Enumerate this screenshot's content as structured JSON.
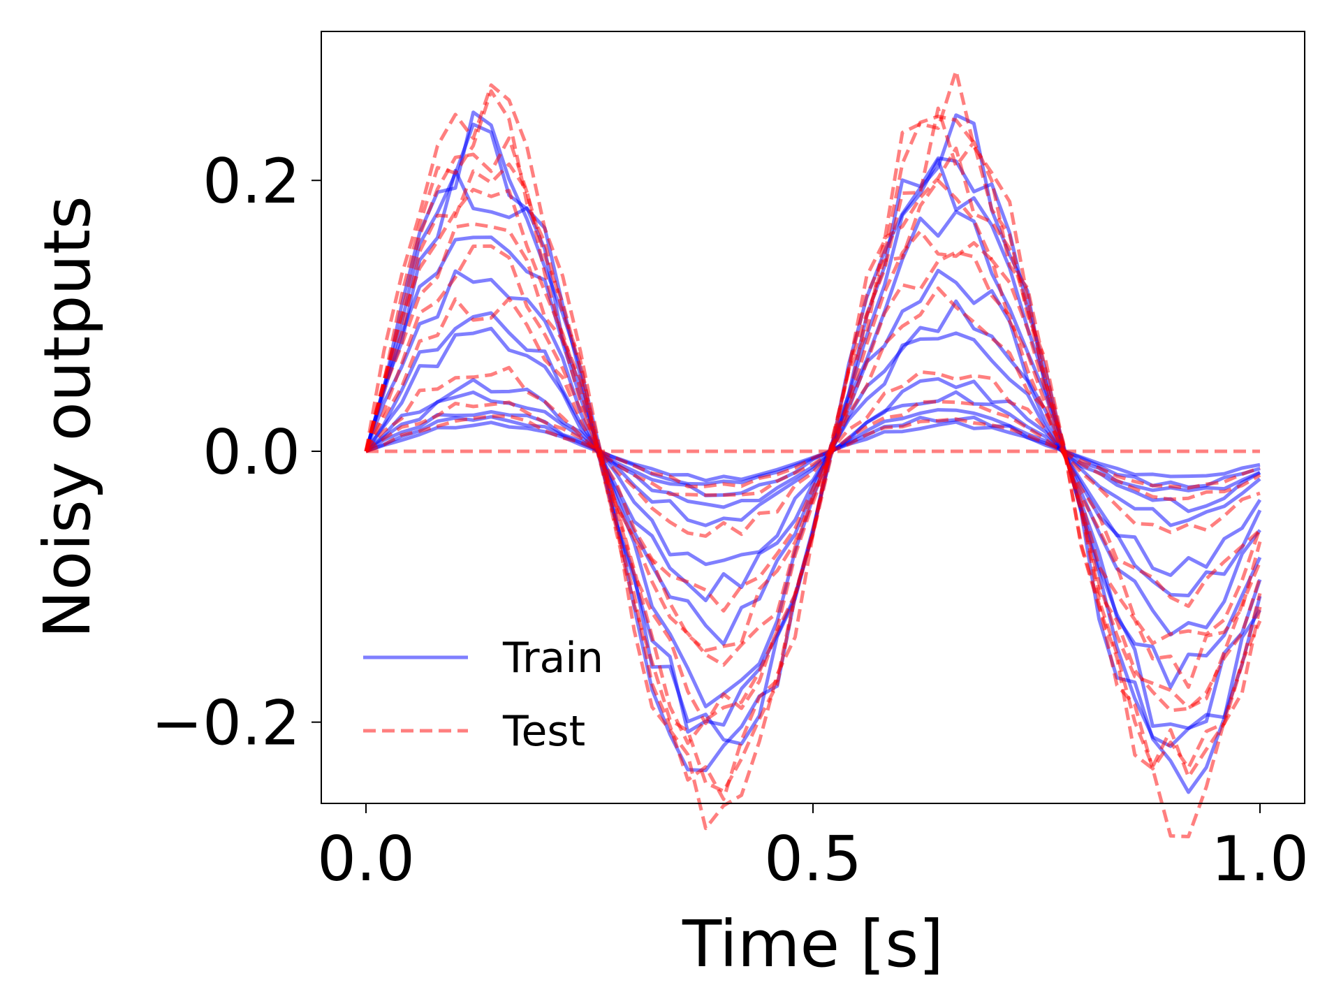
{
  "chart_data": {
    "type": "line",
    "title": "",
    "xlabel": "Time [s]",
    "ylabel": "Noisy outputs",
    "xlim": [
      -0.05,
      1.05
    ],
    "ylim": [
      -0.26,
      0.31
    ],
    "x_ticks": [
      0.0,
      0.5,
      1.0
    ],
    "x_tick_labels": [
      "0.0",
      "0.5",
      "1.0"
    ],
    "y_ticks": [
      -0.2,
      0.0,
      0.2
    ],
    "y_tick_labels": [
      "−0.2",
      "0.0",
      "0.2"
    ],
    "grid": false,
    "legend": {
      "location": "lower-left",
      "entries": [
        {
          "label": "Train",
          "style": "solid",
          "color": "#0000ff"
        },
        {
          "label": "Test",
          "style": "dashed",
          "color": "#ff0000"
        }
      ]
    },
    "series_model": "y(t) = A * sin(4*pi*t/1.04) with additive noise; x sampled at t = 0..1 in steps of 0.02",
    "x": [
      0.0,
      0.02,
      0.04,
      0.06,
      0.08,
      0.1,
      0.12,
      0.14,
      0.16,
      0.18,
      0.2,
      0.22,
      0.24,
      0.26,
      0.28,
      0.3,
      0.32,
      0.34,
      0.36,
      0.38,
      0.4,
      0.42,
      0.44,
      0.46,
      0.48,
      0.5,
      0.52,
      0.54,
      0.56,
      0.58,
      0.6,
      0.62,
      0.64,
      0.66,
      0.68,
      0.7,
      0.72,
      0.74,
      0.76,
      0.78,
      0.8,
      0.82,
      0.84,
      0.86,
      0.88,
      0.9,
      0.92,
      0.94,
      0.96,
      0.98,
      1.0
    ],
    "series": [
      {
        "group": "Train",
        "amplitude": 0.02,
        "seed": 11
      },
      {
        "group": "Train",
        "amplitude": 0.025,
        "seed": 12
      },
      {
        "group": "Train",
        "amplitude": 0.03,
        "seed": 13
      },
      {
        "group": "Train",
        "amplitude": 0.04,
        "seed": 14
      },
      {
        "group": "Train",
        "amplitude": 0.05,
        "seed": 15
      },
      {
        "group": "Train",
        "amplitude": 0.085,
        "seed": 16
      },
      {
        "group": "Train",
        "amplitude": 0.1,
        "seed": 17
      },
      {
        "group": "Train",
        "amplitude": 0.13,
        "seed": 18
      },
      {
        "group": "Train",
        "amplitude": 0.17,
        "seed": 19
      },
      {
        "group": "Train",
        "amplitude": 0.2,
        "seed": 20
      },
      {
        "group": "Train",
        "amplitude": 0.22,
        "seed": 21
      },
      {
        "group": "Train",
        "amplitude": 0.235,
        "seed": 22
      },
      {
        "group": "Test",
        "amplitude": 0.0,
        "seed": 31
      },
      {
        "group": "Test",
        "amplitude": 0.025,
        "seed": 32
      },
      {
        "group": "Test",
        "amplitude": 0.035,
        "seed": 33
      },
      {
        "group": "Test",
        "amplitude": 0.06,
        "seed": 34
      },
      {
        "group": "Test",
        "amplitude": 0.11,
        "seed": 35
      },
      {
        "group": "Test",
        "amplitude": 0.14,
        "seed": 36
      },
      {
        "group": "Test",
        "amplitude": 0.16,
        "seed": 37
      },
      {
        "group": "Test",
        "amplitude": 0.19,
        "seed": 38
      },
      {
        "group": "Test",
        "amplitude": 0.21,
        "seed": 39
      },
      {
        "group": "Test",
        "amplitude": 0.23,
        "seed": 40
      },
      {
        "group": "Test",
        "amplitude": 0.245,
        "seed": 41
      },
      {
        "group": "Test",
        "amplitude": 0.26,
        "seed": 42
      }
    ],
    "colors": {
      "train": "#0000ff",
      "test": "#ff0000",
      "axes": "#000000",
      "background": "#ffffff"
    },
    "line_alpha": 0.5
  }
}
